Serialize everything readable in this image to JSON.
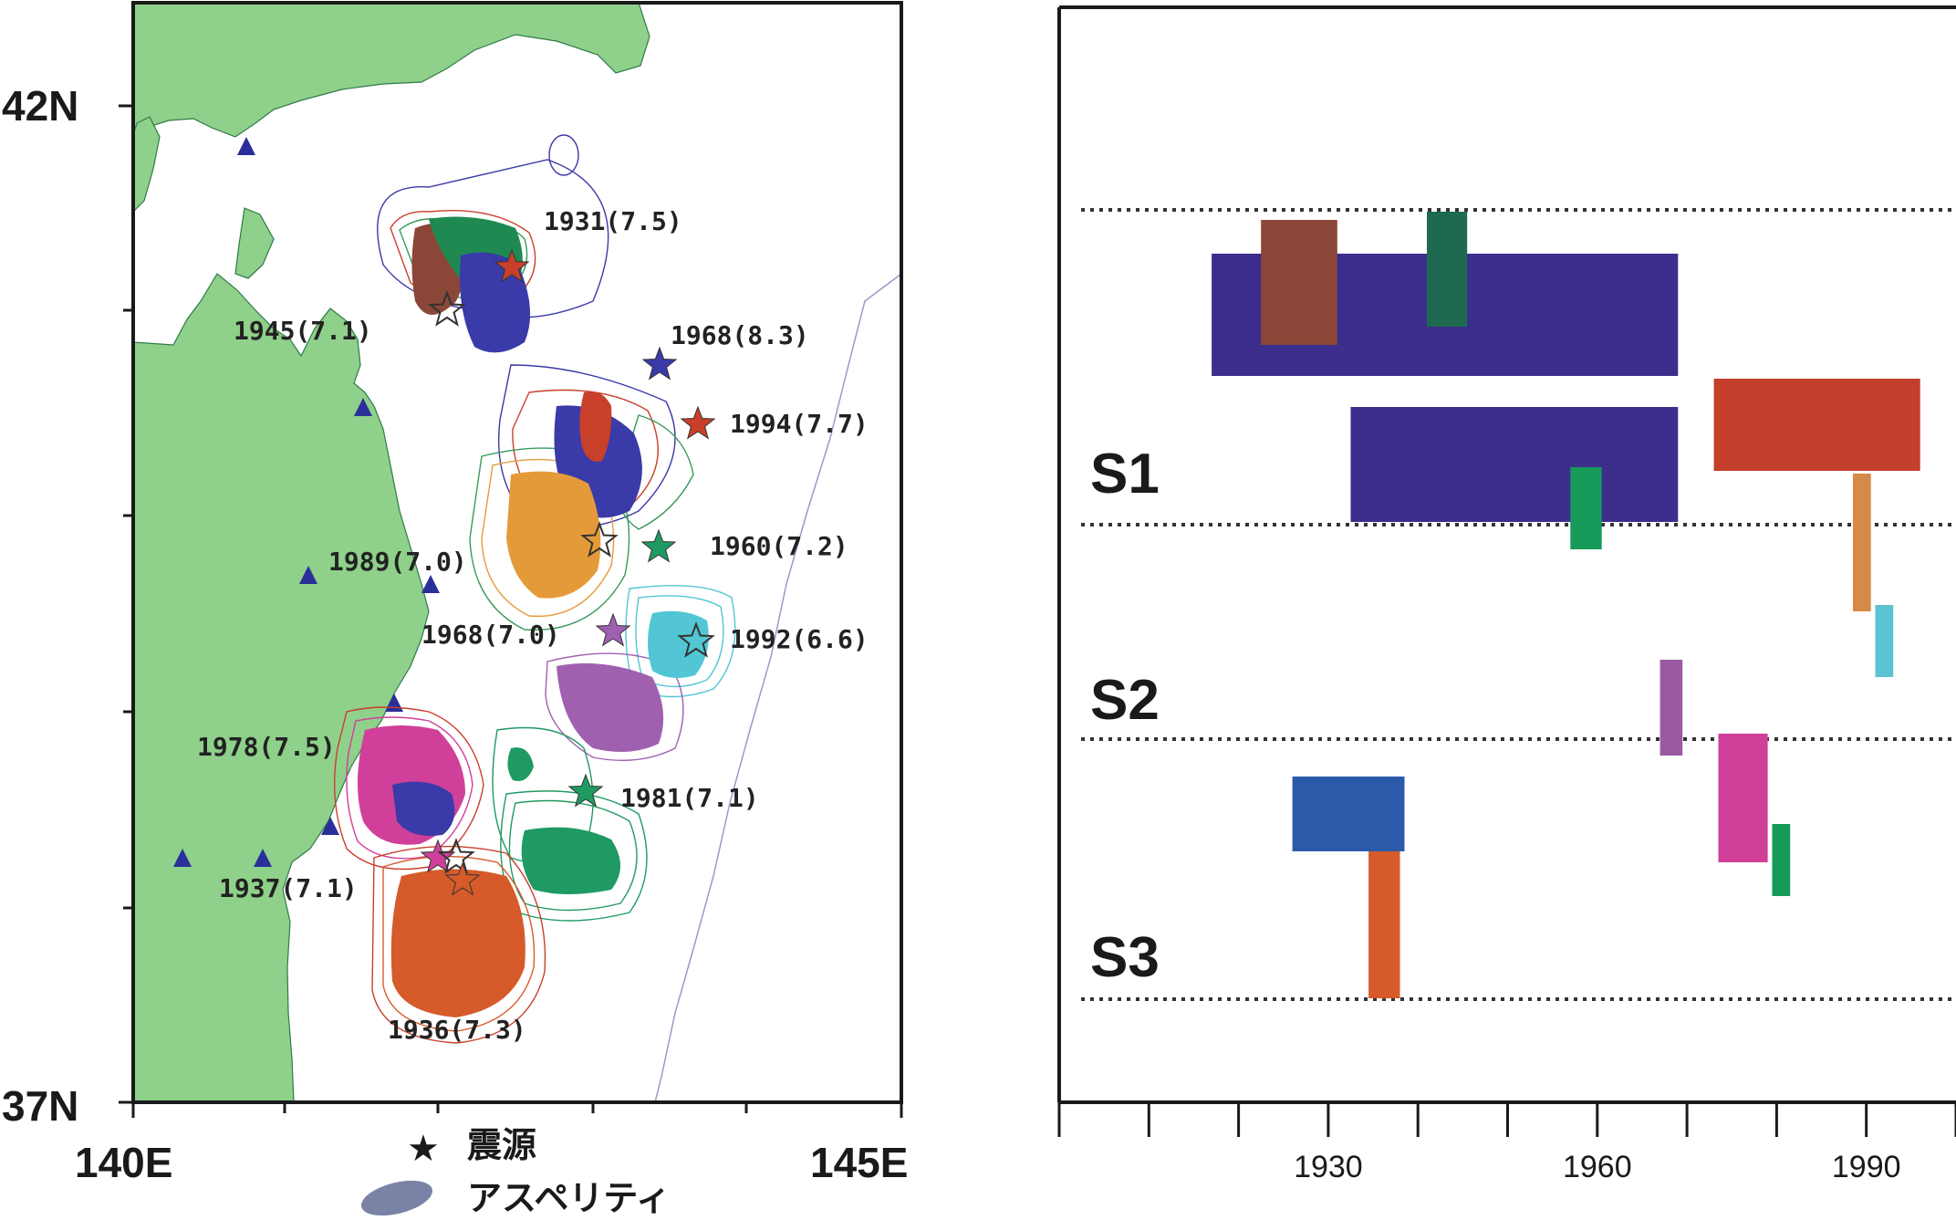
{
  "map": {
    "lat_labels": [
      "42N",
      "37N"
    ],
    "lon_labels": [
      "140E",
      "145E"
    ],
    "events": [
      {
        "label": "1931(7.5)",
        "color": "#c8402a",
        "lon": 142.5,
        "lat": 41.1
      },
      {
        "label": "1945(7.1)",
        "color": "#3a9a5c",
        "lon": 142.1,
        "lat": 40.9
      },
      {
        "label": "1968(8.3)",
        "color": "#3a3aa8",
        "lon": 143.6,
        "lat": 40.7
      },
      {
        "label": "1994(7.7)",
        "color": "#c8402a",
        "lon": 143.8,
        "lat": 40.4
      },
      {
        "label": "1960(7.2)",
        "color": "#1f9a62",
        "lon": 143.6,
        "lat": 39.9
      },
      {
        "label": "1989(7.0)",
        "color": "#e59a3a",
        "lon": 143.1,
        "lat": 39.9
      },
      {
        "label": "1968(7.0)",
        "color": "#a060b0",
        "lon": 143.2,
        "lat": 39.5
      },
      {
        "label": "1992(6.6)",
        "color": "#52c6d4",
        "lon": 143.8,
        "lat": 39.5
      },
      {
        "label": "1978(7.5)",
        "color": "#d0409a",
        "lon": 142.2,
        "lat": 38.2
      },
      {
        "label": "1981(7.1)",
        "color": "#1f9a62",
        "lon": 143.1,
        "lat": 38.8
      },
      {
        "label": "1937(7.1)",
        "color": "#1a1a1a",
        "lon": 142.1,
        "lat": 38.2
      },
      {
        "label": "1936(7.3)",
        "color": "#d65a2a",
        "lon": 142.2,
        "lat": 38.1
      }
    ],
    "legend": {
      "epicenter": "震源",
      "asperity": "アスペリティ"
    }
  },
  "chart_data": {
    "type": "bar",
    "subtype": "timeline",
    "title": "",
    "xlabel": "",
    "ylabel": "",
    "x_ticks": [
      1930,
      1960,
      1990
    ],
    "xlim": [
      1900,
      2000
    ],
    "groups": [
      "S1",
      "S2",
      "S3"
    ],
    "intervals": [
      {
        "group": "S1",
        "color": "#3c2e8c",
        "start": 1917,
        "end": 1969
      },
      {
        "group": "S1",
        "color": "#8a4636",
        "start": 1922.5,
        "end": 1931
      },
      {
        "group": "S1",
        "color": "#1d6a50",
        "start": 1941,
        "end": 1945.5
      },
      {
        "group": "S1",
        "color": "#3c2e8c",
        "start": 1932.5,
        "end": 1969
      },
      {
        "group": "S1",
        "color": "#c43e2c",
        "start": 1973,
        "end": 1996
      },
      {
        "group": "S1",
        "color": "#169a5a",
        "start": 1957,
        "end": 1960.5
      },
      {
        "group": "S2",
        "color": "#d68a4a",
        "start": 1988.5,
        "end": 1990.5
      },
      {
        "group": "S2",
        "color": "#5bc3d1",
        "start": 1991,
        "end": 1993
      },
      {
        "group": "S2",
        "color": "#9a5aa0",
        "start": 1967,
        "end": 1969.5
      },
      {
        "group": "S3",
        "color": "#2c5aaa",
        "start": 1926,
        "end": 1938.5
      },
      {
        "group": "S3",
        "color": "#d0409a",
        "start": 1973.5,
        "end": 1979
      },
      {
        "group": "S3",
        "color": "#169a5a",
        "start": 1979.5,
        "end": 1981.5
      },
      {
        "group": "S3",
        "color": "#d65a2a",
        "start": 1934.5,
        "end": 1938
      }
    ]
  }
}
